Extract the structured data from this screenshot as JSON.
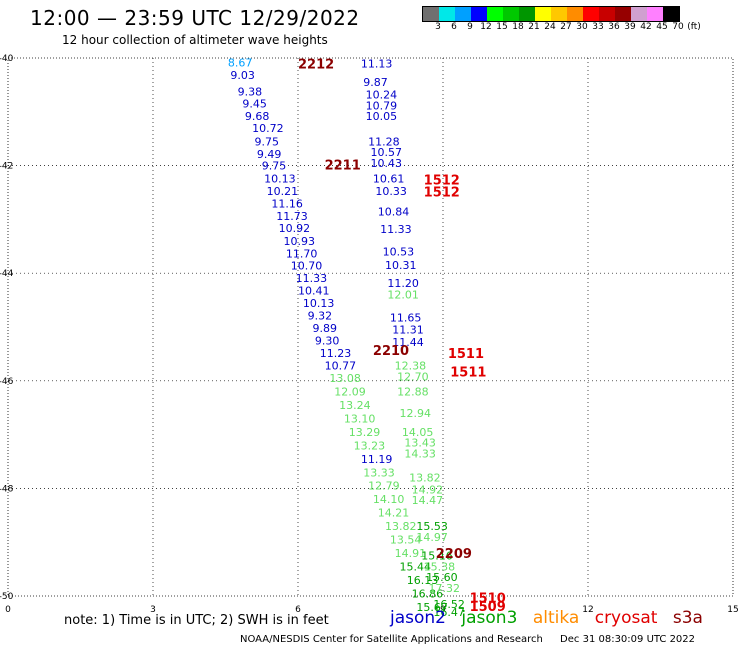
{
  "header": {
    "title": "12:00 — 23:59 UTC 12/29/2022",
    "subtitle": "12 hour collection of altimeter wave heights"
  },
  "color_scale": {
    "colors": [
      "#707070",
      "#00e8e8",
      "#00a0ff",
      "#0000ff",
      "#00ff00",
      "#00c800",
      "#009600",
      "#ffff00",
      "#ffc800",
      "#ff8c00",
      "#ff0000",
      "#c80000",
      "#960000",
      "#d0a0d0",
      "#ff80ff",
      "#000000"
    ],
    "labels": [
      "3",
      "6",
      "9",
      "12",
      "15",
      "18",
      "21",
      "24",
      "27",
      "30",
      "33",
      "36",
      "39",
      "42",
      "45",
      "70",
      "(ft)"
    ]
  },
  "note": "note:  1) Time is in UTC; 2) SWH is in feet",
  "satellites": [
    {
      "name": "jason2",
      "color": "#0000c8"
    },
    {
      "name": "jason3",
      "color": "#00a000"
    },
    {
      "name": "altika",
      "color": "#ff8c00"
    },
    {
      "name": "cryosat",
      "color": "#e00000"
    },
    {
      "name": "s3a",
      "color": "#8b0000"
    }
  ],
  "footer": {
    "credit": "NOAA/NESDIS Center for Satellite Applications and Research",
    "timestamp": "Dec 31 08:30:09 UTC 2022"
  },
  "chart_data": {
    "type": "scatter",
    "xlim": [
      0,
      15
    ],
    "ylim": [
      -50,
      -40
    ],
    "x_ticks": [
      0,
      3,
      6,
      9,
      12,
      15
    ],
    "y_ticks": [
      -40,
      -42,
      -44,
      -46,
      -48,
      -50
    ],
    "grid": true,
    "points": [
      {
        "x": 4.55,
        "y": -40.08,
        "label": "8.67",
        "color": "#00a0ff"
      },
      {
        "x": 4.6,
        "y": -40.32,
        "label": "9.03",
        "color": "#0000c8"
      },
      {
        "x": 4.75,
        "y": -40.62,
        "label": "9.38",
        "color": "#0000c8"
      },
      {
        "x": 4.85,
        "y": -40.85,
        "label": "9.45",
        "color": "#0000c8"
      },
      {
        "x": 4.9,
        "y": -41.08,
        "label": "9.68",
        "color": "#0000c8"
      },
      {
        "x": 5.05,
        "y": -41.3,
        "label": "10.72",
        "color": "#0000c8"
      },
      {
        "x": 5.1,
        "y": -41.55,
        "label": "9.75",
        "color": "#0000c8"
      },
      {
        "x": 5.15,
        "y": -41.78,
        "label": "9.49",
        "color": "#0000c8"
      },
      {
        "x": 5.25,
        "y": -42.0,
        "label": "9.75",
        "color": "#0000c8"
      },
      {
        "x": 5.3,
        "y": -42.24,
        "label": "10.13",
        "color": "#0000c8"
      },
      {
        "x": 5.35,
        "y": -42.47,
        "label": "10.21",
        "color": "#0000c8"
      },
      {
        "x": 5.45,
        "y": -42.7,
        "label": "11.16",
        "color": "#0000c8"
      },
      {
        "x": 5.55,
        "y": -42.94,
        "label": "11.73",
        "color": "#0000c8"
      },
      {
        "x": 5.6,
        "y": -43.16,
        "label": "10.92",
        "color": "#0000c8"
      },
      {
        "x": 5.7,
        "y": -43.4,
        "label": "10.93",
        "color": "#0000c8"
      },
      {
        "x": 5.75,
        "y": -43.63,
        "label": "11.70",
        "color": "#0000c8"
      },
      {
        "x": 5.85,
        "y": -43.86,
        "label": "10.70",
        "color": "#0000c8"
      },
      {
        "x": 5.95,
        "y": -44.09,
        "label": "11.33",
        "color": "#0000c8"
      },
      {
        "x": 6.0,
        "y": -44.32,
        "label": "10.41",
        "color": "#0000c8"
      },
      {
        "x": 6.1,
        "y": -44.55,
        "label": "10.13",
        "color": "#0000c8"
      },
      {
        "x": 6.2,
        "y": -44.79,
        "label": "9.32",
        "color": "#0000c8"
      },
      {
        "x": 6.3,
        "y": -45.02,
        "label": "9.89",
        "color": "#0000c8"
      },
      {
        "x": 6.35,
        "y": -45.25,
        "label": "9.30",
        "color": "#0000c8"
      },
      {
        "x": 6.45,
        "y": -45.48,
        "label": "11.23",
        "color": "#0000c8"
      },
      {
        "x": 6.55,
        "y": -45.72,
        "label": "10.77",
        "color": "#0000c8"
      },
      {
        "x": 6.65,
        "y": -45.95,
        "label": "13.08",
        "color": "#66e066"
      },
      {
        "x": 6.75,
        "y": -46.2,
        "label": "12.09",
        "color": "#66e066"
      },
      {
        "x": 6.85,
        "y": -46.45,
        "label": "13.24",
        "color": "#66e066"
      },
      {
        "x": 6.95,
        "y": -46.7,
        "label": "13.10",
        "color": "#66e066"
      },
      {
        "x": 7.05,
        "y": -46.95,
        "label": "13.29",
        "color": "#66e066"
      },
      {
        "x": 7.15,
        "y": -47.2,
        "label": "13.23",
        "color": "#66e066"
      },
      {
        "x": 7.3,
        "y": -47.45,
        "label": "11.19",
        "color": "#0000c8"
      },
      {
        "x": 7.35,
        "y": -47.7,
        "label": "13.33",
        "color": "#66e066"
      },
      {
        "x": 7.45,
        "y": -47.95,
        "label": "12.79",
        "color": "#66e066"
      },
      {
        "x": 7.55,
        "y": -48.2,
        "label": "14.10",
        "color": "#66e066"
      },
      {
        "x": 7.65,
        "y": -48.45,
        "label": "14.21",
        "color": "#66e066"
      },
      {
        "x": 7.8,
        "y": -48.7,
        "label": "13.82",
        "color": "#66e066"
      },
      {
        "x": 7.9,
        "y": -48.95,
        "label": "13.54",
        "color": "#66e066"
      },
      {
        "x": 8.0,
        "y": -49.2,
        "label": "14.91",
        "color": "#66e066"
      },
      {
        "x": 8.1,
        "y": -49.45,
        "label": "15.44",
        "color": "#00a000"
      },
      {
        "x": 8.25,
        "y": -49.7,
        "label": "16.13",
        "color": "#00a000"
      },
      {
        "x": 8.35,
        "y": -49.95,
        "label": "16.86",
        "color": "#00a000"
      },
      {
        "x": 8.45,
        "y": -50.2,
        "label": "15.67",
        "color": "#00a000"
      },
      {
        "x": 7.3,
        "y": -40.1,
        "label": "11.13",
        "color": "#0000c8"
      },
      {
        "x": 7.35,
        "y": -40.45,
        "label": "9.87",
        "color": "#0000c8"
      },
      {
        "x": 7.4,
        "y": -40.68,
        "label": "10.24",
        "color": "#0000c8"
      },
      {
        "x": 7.4,
        "y": -40.88,
        "label": "10.79",
        "color": "#0000c8"
      },
      {
        "x": 7.4,
        "y": -41.08,
        "label": "10.05",
        "color": "#0000c8"
      },
      {
        "x": 7.45,
        "y": -41.55,
        "label": "11.28",
        "color": "#0000c8"
      },
      {
        "x": 7.5,
        "y": -41.75,
        "label": "10.57",
        "color": "#0000c8"
      },
      {
        "x": 7.5,
        "y": -41.95,
        "label": "10.43",
        "color": "#0000c8"
      },
      {
        "x": 7.55,
        "y": -42.24,
        "label": "10.61",
        "color": "#0000c8"
      },
      {
        "x": 7.6,
        "y": -42.47,
        "label": "10.33",
        "color": "#0000c8"
      },
      {
        "x": 7.65,
        "y": -42.85,
        "label": "10.84",
        "color": "#0000c8"
      },
      {
        "x": 7.7,
        "y": -43.18,
        "label": "11.33",
        "color": "#0000c8"
      },
      {
        "x": 7.75,
        "y": -43.6,
        "label": "10.53",
        "color": "#0000c8"
      },
      {
        "x": 7.8,
        "y": -43.85,
        "label": "10.31",
        "color": "#0000c8"
      },
      {
        "x": 7.85,
        "y": -44.18,
        "label": "11.20",
        "color": "#0000c8"
      },
      {
        "x": 7.85,
        "y": -44.4,
        "label": "12.01",
        "color": "#66e066"
      },
      {
        "x": 7.9,
        "y": -44.82,
        "label": "11.65",
        "color": "#0000c8"
      },
      {
        "x": 7.95,
        "y": -45.05,
        "label": "11.31",
        "color": "#0000c8"
      },
      {
        "x": 7.95,
        "y": -45.28,
        "label": "11.44",
        "color": "#0000c8"
      },
      {
        "x": 8.0,
        "y": -45.72,
        "label": "12.38",
        "color": "#66e066"
      },
      {
        "x": 8.05,
        "y": -45.92,
        "label": "12.70",
        "color": "#66e066"
      },
      {
        "x": 8.05,
        "y": -46.2,
        "label": "12.88",
        "color": "#66e066"
      },
      {
        "x": 8.1,
        "y": -46.6,
        "label": "12.94",
        "color": "#66e066"
      },
      {
        "x": 8.15,
        "y": -46.95,
        "label": "14.05",
        "color": "#66e066"
      },
      {
        "x": 8.2,
        "y": -47.15,
        "label": "13.43",
        "color": "#66e066"
      },
      {
        "x": 8.2,
        "y": -47.35,
        "label": "14.33",
        "color": "#66e066"
      },
      {
        "x": 8.3,
        "y": -47.8,
        "label": "13.82",
        "color": "#66e066"
      },
      {
        "x": 8.35,
        "y": -48.02,
        "label": "14.92",
        "color": "#66e066"
      },
      {
        "x": 8.35,
        "y": -48.22,
        "label": "14.47",
        "color": "#66e066"
      },
      {
        "x": 8.45,
        "y": -48.7,
        "label": "15.53",
        "color": "#00a000"
      },
      {
        "x": 8.45,
        "y": -48.9,
        "label": "14.97",
        "color": "#66e066"
      },
      {
        "x": 8.55,
        "y": -49.25,
        "label": "15.16",
        "color": "#00a000"
      },
      {
        "x": 8.6,
        "y": -49.45,
        "label": "15.38",
        "color": "#66e066"
      },
      {
        "x": 8.65,
        "y": -49.65,
        "label": "15.60",
        "color": "#00a000"
      },
      {
        "x": 8.7,
        "y": -49.85,
        "label": "17.32",
        "color": "#66e066"
      },
      {
        "x": 8.8,
        "y": -50.15,
        "label": "16.52",
        "color": "#00a000"
      },
      {
        "x": 8.8,
        "y": -50.3,
        "label": "16.47",
        "color": "#00a000"
      },
      {
        "x": 6.0,
        "y": -40.12,
        "label": "2212",
        "color": "#8b0000",
        "big": true
      },
      {
        "x": 6.55,
        "y": -42.0,
        "label": "2211",
        "color": "#8b0000",
        "big": true
      },
      {
        "x": 7.55,
        "y": -45.45,
        "label": "2210",
        "color": "#8b0000",
        "big": true
      },
      {
        "x": 8.85,
        "y": -49.22,
        "label": "2209",
        "color": "#8b0000",
        "big": true
      },
      {
        "x": 8.6,
        "y": -42.28,
        "label": "1512",
        "color": "#e00000",
        "big": true
      },
      {
        "x": 8.6,
        "y": -42.5,
        "label": "1512",
        "color": "#e00000",
        "big": true
      },
      {
        "x": 9.1,
        "y": -45.5,
        "label": "1511",
        "color": "#e00000",
        "big": true
      },
      {
        "x": 9.15,
        "y": -45.85,
        "label": "1511",
        "color": "#e00000",
        "big": true
      },
      {
        "x": 9.55,
        "y": -50.05,
        "label": "1510",
        "color": "#e00000",
        "big": true
      },
      {
        "x": 9.55,
        "y": -50.2,
        "label": "1509",
        "color": "#e00000",
        "big": true
      }
    ]
  }
}
